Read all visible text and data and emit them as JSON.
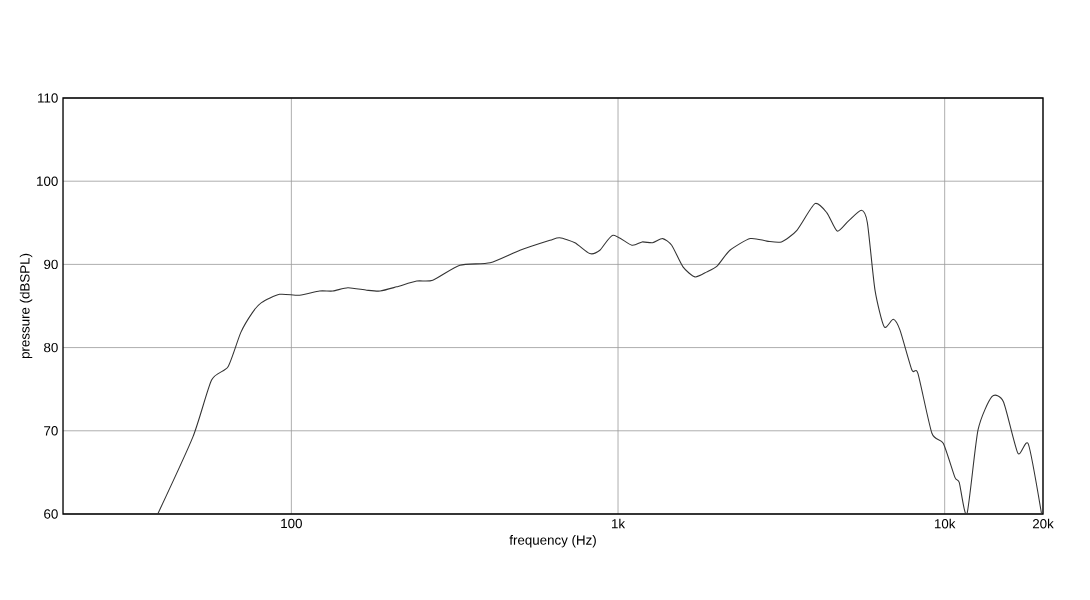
{
  "chart_data": {
    "type": "line",
    "xlabel": "frequency (Hz)",
    "ylabel": "pressure (dBSPL)",
    "log": "x",
    "grid": true,
    "xlim": [
      20,
      20000
    ],
    "xticks": [
      {
        "value": 100,
        "label": "100"
      },
      {
        "value": 1000,
        "label": "1k"
      },
      {
        "value": 10000,
        "label": "10k"
      },
      {
        "value": 20000,
        "label": "20k"
      }
    ],
    "ylim": [
      60,
      110
    ],
    "yticks": [
      60,
      70,
      80,
      90,
      100,
      110
    ],
    "series": [
      {
        "color": "#333333",
        "x": [
          39,
          50,
          57,
          64,
          70,
          76,
          81,
          92,
          106,
          122,
          134,
          149,
          170,
          187,
          210,
          242,
          271,
          328,
          406,
          501,
          619,
          663,
          738,
          820,
          880,
          965,
          1103,
          1185,
          1276,
          1370,
          1460,
          1581,
          1720,
          1870,
          2010,
          2201,
          2540,
          2857,
          3164,
          3529,
          4006,
          4360,
          4690,
          5070,
          5560,
          5800,
          6120,
          6530,
          6960,
          7300,
          7940,
          8280,
          9140,
          9900,
          10750,
          11080,
          11700,
          12650,
          13950,
          15130,
          16760,
          18040,
          19800
        ],
        "values": [
          60,
          69.3,
          76.1,
          77.7,
          81.8,
          84.2,
          85.4,
          86.4,
          86.3,
          86.8,
          86.8,
          87.2,
          86.9,
          86.8,
          87.3,
          88.0,
          88.1,
          89.9,
          90.2,
          91.7,
          92.9,
          93.2,
          92.6,
          91.3,
          91.7,
          93.5,
          92.3,
          92.7,
          92.6,
          93.1,
          92.3,
          89.7,
          88.5,
          89.1,
          89.8,
          91.7,
          93.1,
          92.8,
          92.7,
          94.1,
          97.3,
          96.2,
          94.0,
          95.2,
          96.5,
          95.0,
          86.9,
          82.5,
          83.4,
          82.1,
          77.3,
          76.9,
          69.7,
          68.5,
          64.4,
          63.8,
          60,
          70.1,
          74.1,
          73.5,
          67.3,
          68.4,
          60
        ]
      }
    ]
  }
}
